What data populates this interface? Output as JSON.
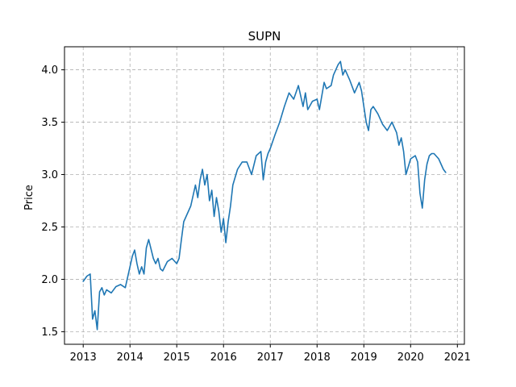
{
  "chart_data": {
    "type": "line",
    "title": "SUPN",
    "xlabel": "",
    "ylabel": "Price",
    "xlim": [
      2012.6,
      2021.15
    ],
    "ylim": [
      1.38,
      4.22
    ],
    "grid": true,
    "grid_style": "dashed",
    "x_ticks": [
      2013,
      2014,
      2015,
      2016,
      2017,
      2018,
      2019,
      2020,
      2021
    ],
    "x_tick_labels": [
      "2013",
      "2014",
      "2015",
      "2016",
      "2017",
      "2018",
      "2019",
      "2020",
      "2021"
    ],
    "y_ticks": [
      1.5,
      2.0,
      2.5,
      3.0,
      3.5,
      4.0
    ],
    "y_tick_labels": [
      "1.5",
      "2.0",
      "2.5",
      "3.0",
      "3.5",
      "4.0"
    ],
    "colors": {
      "line": "#1f77b4",
      "grid": "#b0b0b0",
      "axes": "#000000"
    },
    "series": [
      {
        "x": [
          2013.0,
          2013.08,
          2013.15,
          2013.2,
          2013.25,
          2013.3,
          2013.35,
          2013.4,
          2013.45,
          2013.5,
          2013.6,
          2013.7,
          2013.8,
          2013.9,
          2014.0,
          2014.05,
          2014.1,
          2014.15,
          2014.2,
          2014.25,
          2014.3,
          2014.35,
          2014.4,
          2014.5,
          2014.55,
          2014.6,
          2014.65,
          2014.7,
          2014.8,
          2014.9,
          2015.0,
          2015.05,
          2015.1,
          2015.15,
          2015.2,
          2015.3,
          2015.4,
          2015.45,
          2015.5,
          2015.55,
          2015.6,
          2015.65,
          2015.7,
          2015.75,
          2015.8,
          2015.85,
          2015.9,
          2015.95,
          2016.0,
          2016.05,
          2016.1,
          2016.15,
          2016.2,
          2016.3,
          2016.4,
          2016.5,
          2016.6,
          2016.7,
          2016.8,
          2016.85,
          2016.9,
          2016.95,
          2017.0,
          2017.1,
          2017.2,
          2017.3,
          2017.4,
          2017.5,
          2017.6,
          2017.7,
          2017.75,
          2017.8,
          2017.9,
          2018.0,
          2018.05,
          2018.1,
          2018.15,
          2018.2,
          2018.3,
          2018.35,
          2018.4,
          2018.45,
          2018.5,
          2018.55,
          2018.6,
          2018.7,
          2018.8,
          2018.9,
          2018.95,
          2019.0,
          2019.05,
          2019.1,
          2019.15,
          2019.2,
          2019.3,
          2019.4,
          2019.5,
          2019.6,
          2019.7,
          2019.75,
          2019.8,
          2019.85,
          2019.9,
          2020.0,
          2020.1,
          2020.15,
          2020.2,
          2020.25,
          2020.3,
          2020.35,
          2020.4,
          2020.45,
          2020.5,
          2020.6,
          2020.7,
          2020.75
        ],
        "y": [
          1.98,
          2.03,
          2.05,
          1.62,
          1.7,
          1.52,
          1.88,
          1.92,
          1.85,
          1.9,
          1.87,
          1.93,
          1.95,
          1.92,
          2.12,
          2.22,
          2.28,
          2.15,
          2.05,
          2.12,
          2.05,
          2.3,
          2.38,
          2.2,
          2.15,
          2.2,
          2.1,
          2.08,
          2.17,
          2.2,
          2.15,
          2.2,
          2.38,
          2.55,
          2.6,
          2.7,
          2.9,
          2.78,
          2.95,
          3.05,
          2.9,
          3.0,
          2.75,
          2.85,
          2.6,
          2.78,
          2.65,
          2.45,
          2.58,
          2.35,
          2.55,
          2.7,
          2.9,
          3.05,
          3.12,
          3.12,
          3.0,
          3.18,
          3.22,
          2.95,
          3.12,
          3.2,
          3.25,
          3.38,
          3.5,
          3.65,
          3.78,
          3.72,
          3.85,
          3.65,
          3.78,
          3.62,
          3.7,
          3.72,
          3.62,
          3.75,
          3.88,
          3.82,
          3.85,
          3.95,
          4.0,
          4.05,
          4.08,
          3.95,
          4.0,
          3.9,
          3.78,
          3.88,
          3.8,
          3.65,
          3.5,
          3.42,
          3.62,
          3.65,
          3.58,
          3.48,
          3.42,
          3.5,
          3.4,
          3.28,
          3.35,
          3.22,
          3.0,
          3.15,
          3.18,
          3.12,
          2.82,
          2.68,
          2.95,
          3.1,
          3.18,
          3.2,
          3.2,
          3.15,
          3.05,
          3.02
        ]
      }
    ]
  }
}
